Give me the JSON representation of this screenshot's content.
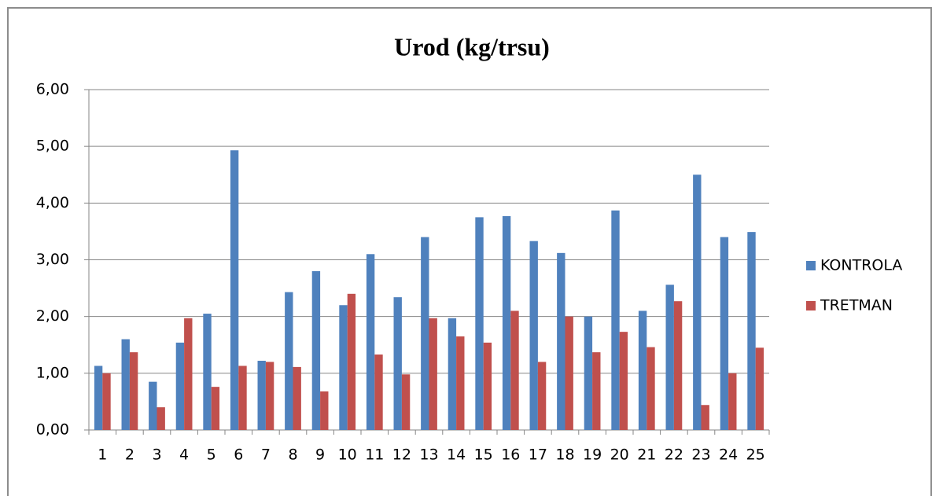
{
  "chart_data": {
    "type": "bar",
    "title": "Urod (kg/trsu)",
    "categories": [
      "1",
      "2",
      "3",
      "4",
      "5",
      "6",
      "7",
      "8",
      "9",
      "10",
      "11",
      "12",
      "13",
      "14",
      "15",
      "16",
      "17",
      "18",
      "19",
      "20",
      "21",
      "22",
      "23",
      "24",
      "25"
    ],
    "series": [
      {
        "name": "KONTROLA",
        "color": "#4f81bd",
        "values": [
          1.13,
          1.6,
          0.85,
          1.54,
          2.05,
          4.93,
          1.22,
          2.43,
          2.8,
          2.2,
          3.1,
          2.34,
          3.4,
          1.97,
          3.75,
          3.77,
          3.33,
          3.12,
          2.0,
          3.87,
          2.1,
          2.56,
          4.5,
          3.4,
          3.49
        ]
      },
      {
        "name": "TRETMAN",
        "color": "#c0504d",
        "values": [
          1.0,
          1.37,
          0.4,
          1.97,
          0.76,
          1.13,
          1.2,
          1.11,
          0.68,
          2.4,
          1.33,
          0.98,
          1.97,
          1.65,
          1.54,
          2.1,
          1.2,
          2.0,
          1.37,
          1.73,
          1.46,
          2.27,
          0.44,
          1.0,
          1.45
        ]
      }
    ],
    "ylim": [
      0,
      6
    ],
    "yticks": [
      {
        "value": 0,
        "label": "0,00"
      },
      {
        "value": 1,
        "label": "1,00"
      },
      {
        "value": 2,
        "label": "2,00"
      },
      {
        "value": 3,
        "label": "3,00"
      },
      {
        "value": 4,
        "label": "4,00"
      },
      {
        "value": 5,
        "label": "5,00"
      },
      {
        "value": 6,
        "label": "6,00"
      }
    ],
    "grid": true,
    "legend": "right"
  }
}
